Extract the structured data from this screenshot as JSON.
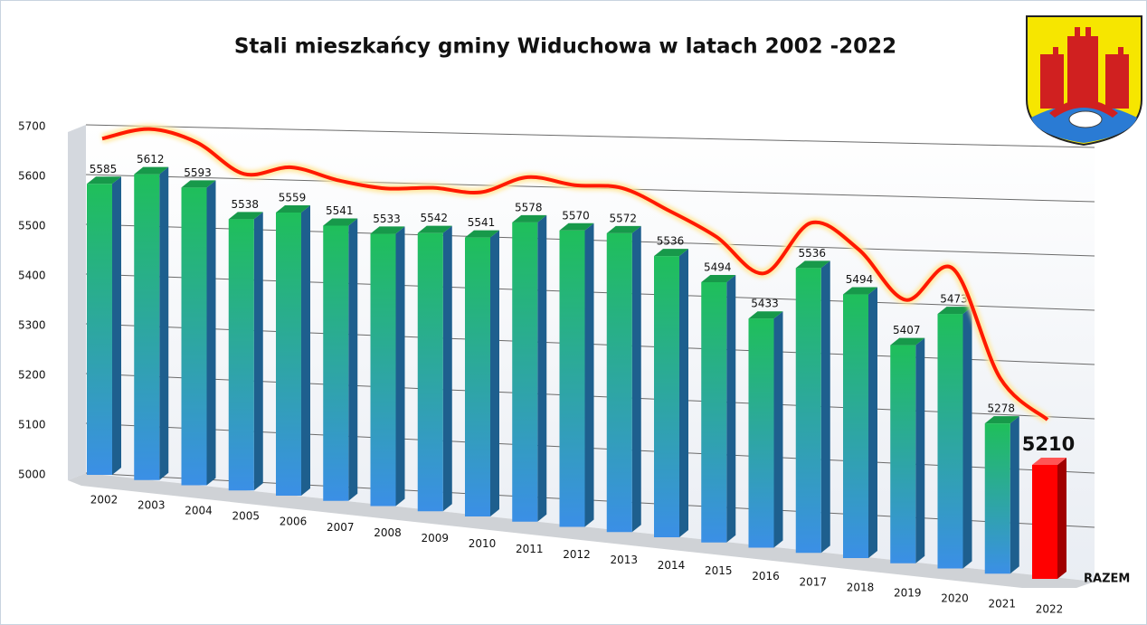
{
  "chart_data": {
    "type": "bar3d",
    "title": "Stali mieszkańcy gminy Widuchowa w latach  2002 -2022",
    "categories": [
      "2002",
      "2003",
      "2004",
      "2005",
      "2006",
      "2007",
      "2008",
      "2009",
      "2010",
      "2011",
      "2012",
      "2013",
      "2014",
      "2015",
      "2016",
      "2017",
      "2018",
      "2019",
      "2020",
      "2021",
      "2022"
    ],
    "values": [
      5585,
      5612,
      5593,
      5538,
      5559,
      5541,
      5533,
      5542,
      5541,
      5578,
      5570,
      5572,
      5536,
      5494,
      5433,
      5536,
      5494,
      5407,
      5473,
      5278,
      5210
    ],
    "depth_label": "RAZEM",
    "ylim": [
      5000,
      5700
    ],
    "yticks": [
      5000,
      5100,
      5200,
      5300,
      5400,
      5500,
      5600,
      5700
    ],
    "grid": true,
    "color_top": "#1fbf5a",
    "color_bottom": "#3b8fe6",
    "highlight_color": "#ff0000",
    "trend_color": "#ff1a00"
  }
}
